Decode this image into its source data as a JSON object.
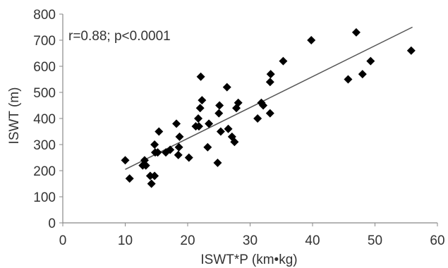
{
  "chart_data": {
    "type": "scatter",
    "title": "",
    "xlabel": "ISWT*P (km•kg)",
    "ylabel": "ISWT (m)",
    "xlim": [
      0,
      60
    ],
    "ylim": [
      0,
      800
    ],
    "x_ticks": [
      "0",
      "10",
      "20",
      "30",
      "40",
      "50",
      "60"
    ],
    "y_ticks": [
      "0",
      "100",
      "200",
      "300",
      "400",
      "500",
      "600",
      "700",
      "800"
    ],
    "grid": false,
    "legend": "none",
    "annotation": "r=0.88; p<0.0001",
    "marker": "diamond",
    "marker_color": "#000000",
    "trendline": {
      "x": [
        10,
        56
      ],
      "y": [
        205,
        750
      ],
      "color": "#555555"
    },
    "points": [
      {
        "x": 10,
        "y": 240
      },
      {
        "x": 10.7,
        "y": 170
      },
      {
        "x": 12.8,
        "y": 220
      },
      {
        "x": 13.1,
        "y": 240
      },
      {
        "x": 13.3,
        "y": 220
      },
      {
        "x": 14,
        "y": 180
      },
      {
        "x": 14.2,
        "y": 150
      },
      {
        "x": 14.7,
        "y": 180
      },
      {
        "x": 14.7,
        "y": 300
      },
      {
        "x": 14.8,
        "y": 270
      },
      {
        "x": 15.2,
        "y": 270
      },
      {
        "x": 15.4,
        "y": 350
      },
      {
        "x": 16.5,
        "y": 270
      },
      {
        "x": 17.2,
        "y": 280
      },
      {
        "x": 18.2,
        "y": 380
      },
      {
        "x": 18.5,
        "y": 260
      },
      {
        "x": 18.6,
        "y": 290
      },
      {
        "x": 18.7,
        "y": 330
      },
      {
        "x": 20.2,
        "y": 250
      },
      {
        "x": 21.3,
        "y": 370
      },
      {
        "x": 21.7,
        "y": 400
      },
      {
        "x": 21.8,
        "y": 370
      },
      {
        "x": 22,
        "y": 440
      },
      {
        "x": 22.1,
        "y": 560
      },
      {
        "x": 22.3,
        "y": 470
      },
      {
        "x": 23.2,
        "y": 290
      },
      {
        "x": 23.4,
        "y": 380
      },
      {
        "x": 24.8,
        "y": 230
      },
      {
        "x": 25,
        "y": 420
      },
      {
        "x": 25.1,
        "y": 450
      },
      {
        "x": 25.3,
        "y": 350
      },
      {
        "x": 26.3,
        "y": 520
      },
      {
        "x": 26.5,
        "y": 360
      },
      {
        "x": 27.1,
        "y": 330
      },
      {
        "x": 27.5,
        "y": 310
      },
      {
        "x": 27.8,
        "y": 440
      },
      {
        "x": 28.1,
        "y": 460
      },
      {
        "x": 31.2,
        "y": 400
      },
      {
        "x": 31.8,
        "y": 460
      },
      {
        "x": 32.1,
        "y": 450
      },
      {
        "x": 33.2,
        "y": 420
      },
      {
        "x": 33.2,
        "y": 540
      },
      {
        "x": 33.3,
        "y": 570
      },
      {
        "x": 35.3,
        "y": 620
      },
      {
        "x": 39.8,
        "y": 700
      },
      {
        "x": 45.7,
        "y": 550
      },
      {
        "x": 47,
        "y": 730
      },
      {
        "x": 48,
        "y": 570
      },
      {
        "x": 49.3,
        "y": 620
      },
      {
        "x": 55.8,
        "y": 660
      }
    ]
  }
}
